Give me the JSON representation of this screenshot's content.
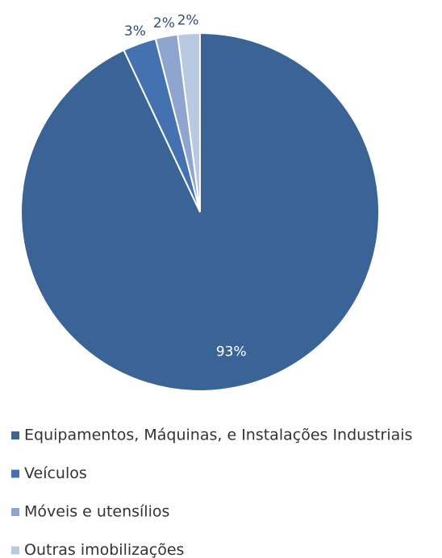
{
  "chart_data": {
    "type": "pie",
    "categories": [
      "Equipamentos, Máquinas, e Instalações Industriais",
      "Veículos",
      "Móveis e utensílios",
      "Outras imobilizações"
    ],
    "values": [
      93,
      3,
      2,
      2
    ],
    "value_labels": [
      "93%",
      "3%",
      "2%",
      "2%"
    ],
    "colors": [
      "#3b6496",
      "#4472b0",
      "#8da5cf",
      "#bac9e2"
    ]
  }
}
